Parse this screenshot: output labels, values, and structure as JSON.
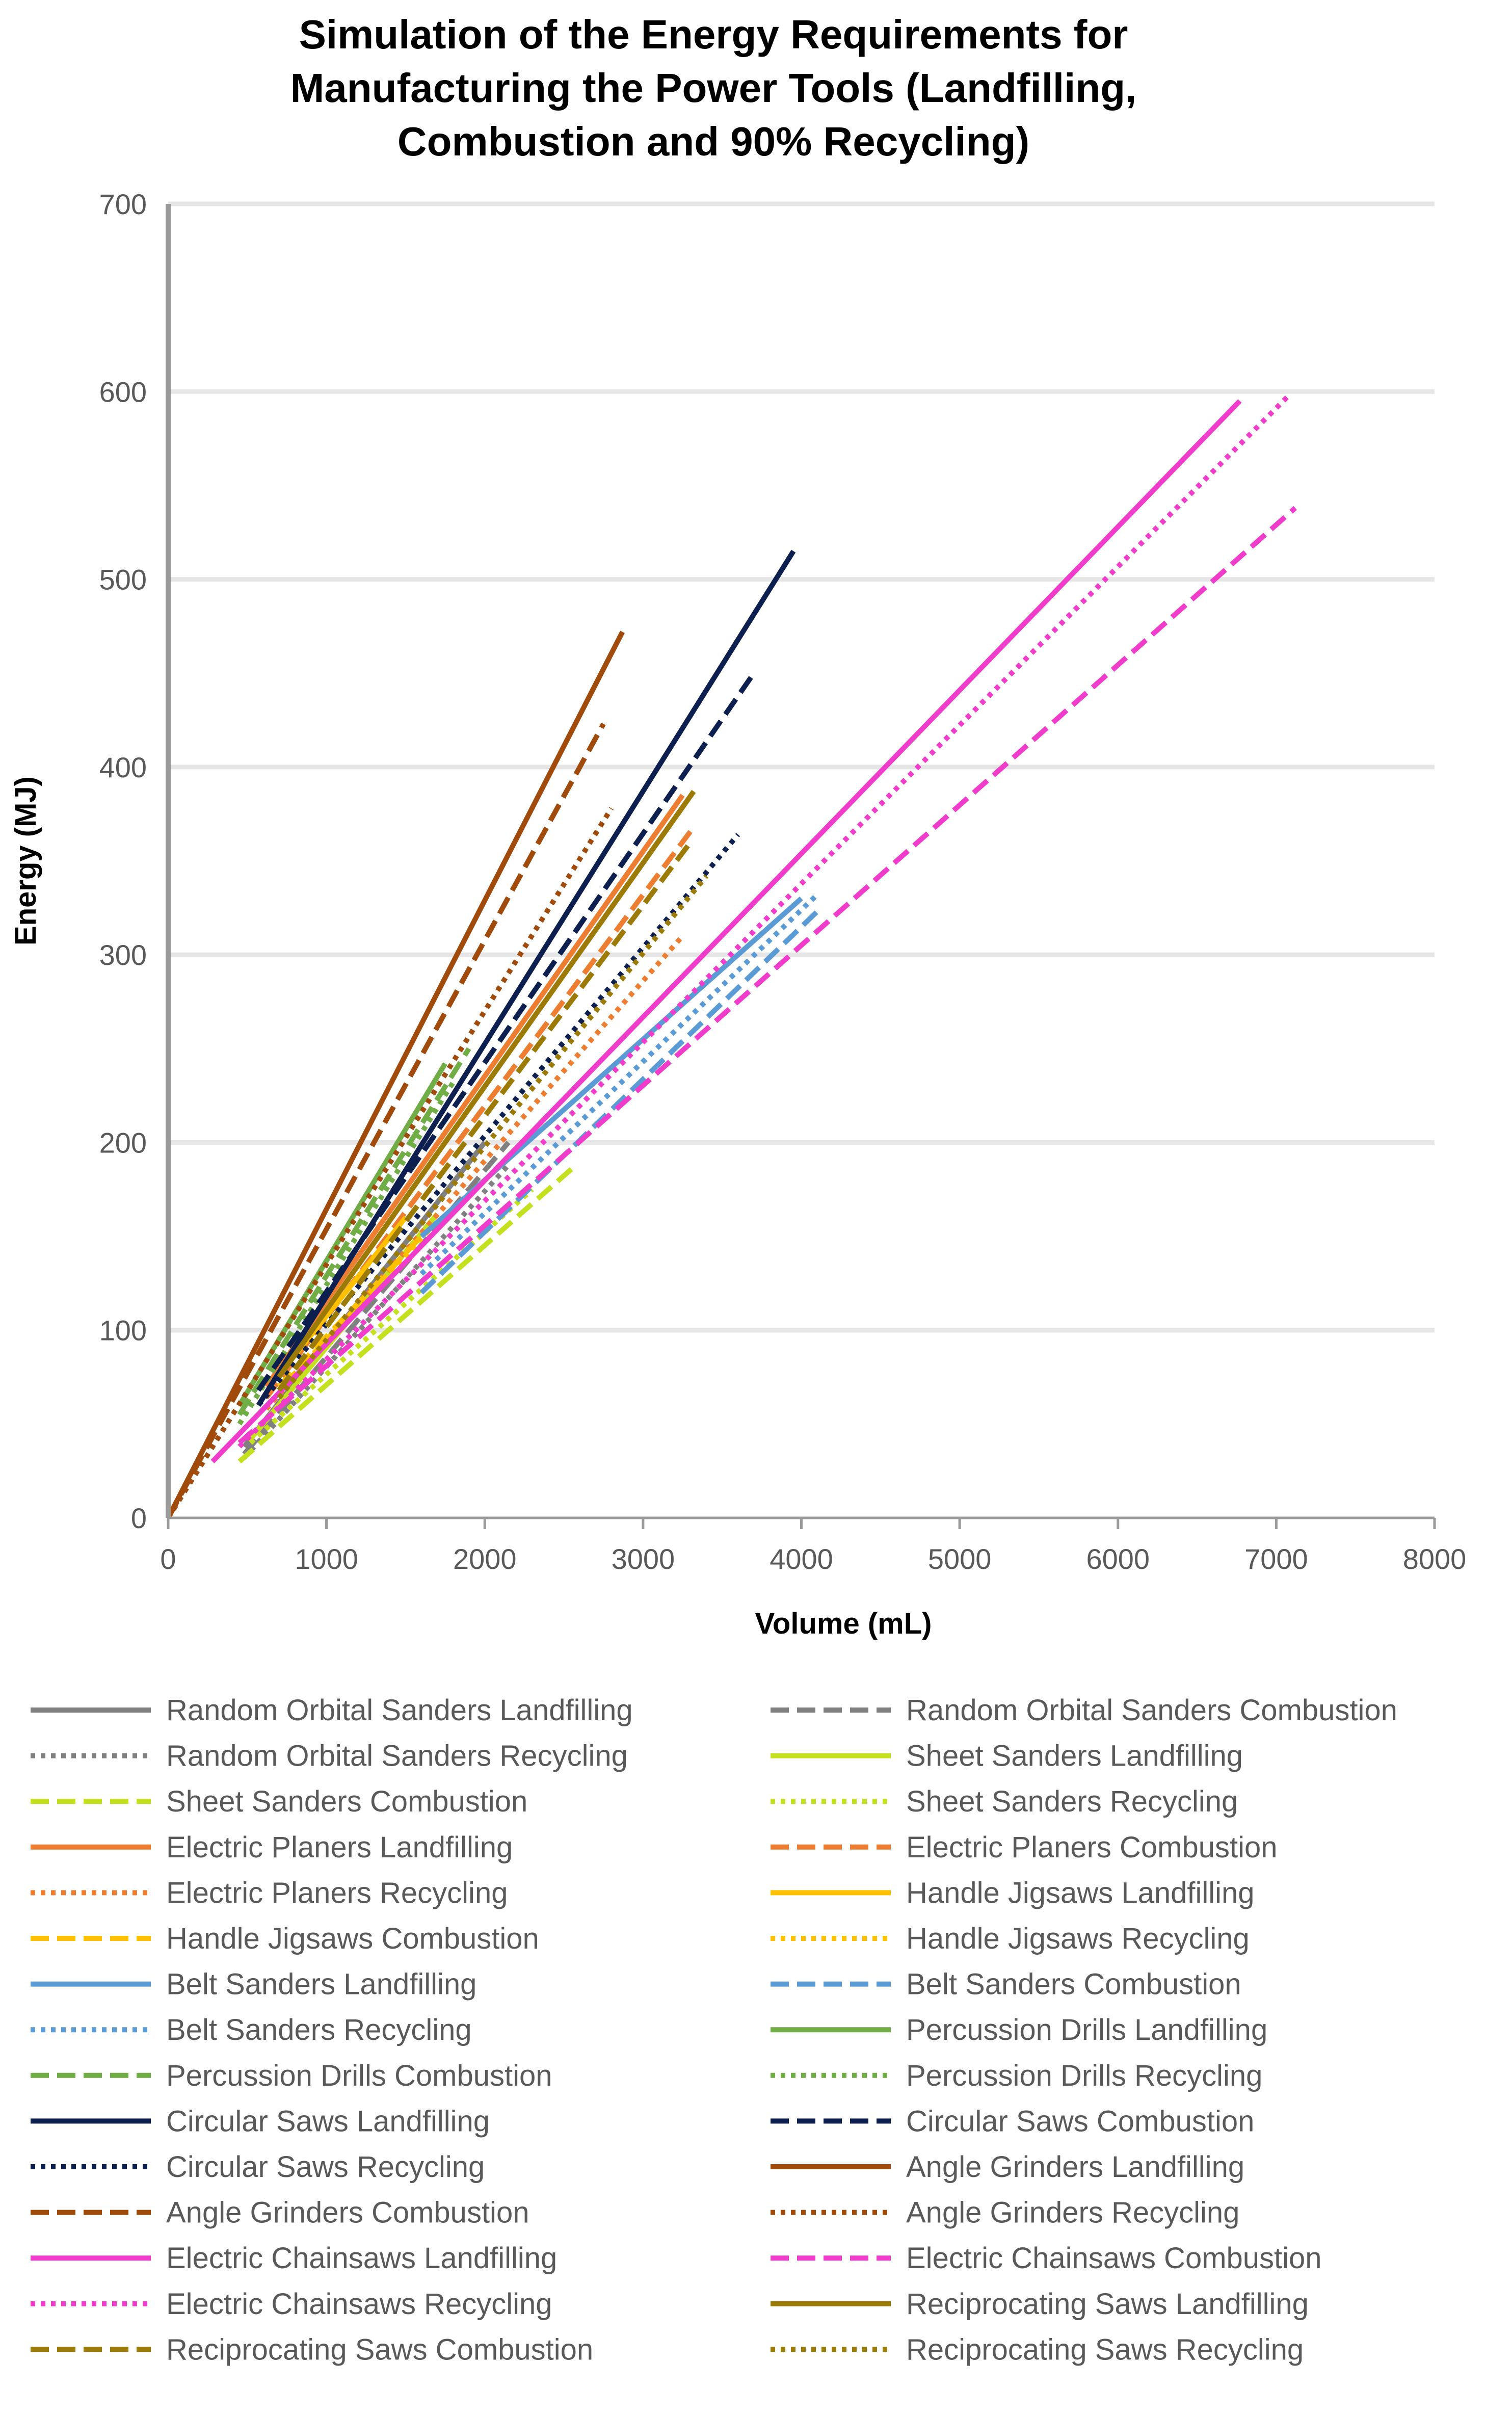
{
  "chart_data": {
    "type": "line",
    "title_lines": [
      "Simulation of the Energy Requirements for",
      "Manufacturing the Power Tools (Landfilling,",
      "Combustion and 90% Recycling)"
    ],
    "xlabel": "Volume (mL)",
    "ylabel": "Energy (MJ)",
    "xlim": [
      0,
      8000
    ],
    "ylim": [
      0,
      700
    ],
    "x_ticks": [
      0,
      1000,
      2000,
      3000,
      4000,
      5000,
      6000,
      7000,
      8000
    ],
    "y_ticks": [
      0,
      100,
      200,
      300,
      400,
      500,
      600,
      700
    ],
    "grid": "horizontal",
    "legend_position": "bottom",
    "series": [
      {
        "name": "Random Orbital Sanders Landfilling",
        "color": "#808080",
        "dash": "solid",
        "points": [
          [
            480,
            38
          ],
          [
            2000,
            200
          ]
        ]
      },
      {
        "name": "Random Orbital Sanders Combustion",
        "color": "#808080",
        "dash": "dash",
        "points": [
          [
            480,
            34
          ],
          [
            2150,
            200
          ]
        ]
      },
      {
        "name": "Random Orbital Sanders Recycling",
        "color": "#808080",
        "dash": "dot",
        "points": [
          [
            480,
            32
          ],
          [
            2150,
            188
          ]
        ]
      },
      {
        "name": "Sheet Sanders Landfilling",
        "color": "#C5E01E",
        "dash": "solid",
        "points": [
          [
            520,
            42
          ],
          [
            1700,
            162
          ]
        ]
      },
      {
        "name": "Sheet Sanders Combustion",
        "color": "#C5E01E",
        "dash": "dash",
        "points": [
          [
            450,
            30
          ],
          [
            2550,
            186
          ]
        ]
      },
      {
        "name": "Sheet Sanders Recycling",
        "color": "#C5E01E",
        "dash": "dot",
        "points": [
          [
            520,
            40
          ],
          [
            2300,
            175
          ]
        ]
      },
      {
        "name": "Electric Planers Landfilling",
        "color": "#ED7D31",
        "dash": "solid",
        "points": [
          [
            620,
            70
          ],
          [
            3250,
            385
          ]
        ]
      },
      {
        "name": "Electric Planers Combustion",
        "color": "#ED7D31",
        "dash": "dash",
        "points": [
          [
            620,
            64
          ],
          [
            3320,
            368
          ]
        ]
      },
      {
        "name": "Electric Planers Recycling",
        "color": "#ED7D31",
        "dash": "dot",
        "points": [
          [
            620,
            58
          ],
          [
            3250,
            310
          ]
        ]
      },
      {
        "name": "Handle Jigsaws Landfilling",
        "color": "#FFC000",
        "dash": "solid",
        "points": [
          [
            700,
            76
          ],
          [
            1500,
            160
          ]
        ]
      },
      {
        "name": "Handle Jigsaws Combustion",
        "color": "#FFC000",
        "dash": "dash",
        "points": [
          [
            700,
            70
          ],
          [
            1600,
            150
          ]
        ]
      },
      {
        "name": "Handle Jigsaws Recycling",
        "color": "#FFC000",
        "dash": "dot",
        "points": [
          [
            700,
            68
          ],
          [
            1700,
            158
          ]
        ]
      },
      {
        "name": "Belt Sanders Landfilling",
        "color": "#5B9BD5",
        "dash": "solid",
        "points": [
          [
            1600,
            150
          ],
          [
            4000,
            330
          ]
        ]
      },
      {
        "name": "Belt Sanders Combustion",
        "color": "#5B9BD5",
        "dash": "dash",
        "points": [
          [
            1600,
            120
          ],
          [
            4100,
            323
          ]
        ]
      },
      {
        "name": "Belt Sanders Recycling",
        "color": "#5B9BD5",
        "dash": "dot",
        "points": [
          [
            1600,
            130
          ],
          [
            4100,
            332
          ]
        ]
      },
      {
        "name": "Percussion Drills Landfilling",
        "color": "#70AD47",
        "dash": "solid",
        "points": [
          [
            450,
            60
          ],
          [
            1750,
            242
          ]
        ]
      },
      {
        "name": "Percussion Drills Combustion",
        "color": "#70AD47",
        "dash": "dash",
        "points": [
          [
            450,
            55
          ],
          [
            1900,
            250
          ]
        ]
      },
      {
        "name": "Percussion Drills Recycling",
        "color": "#70AD47",
        "dash": "dot",
        "points": [
          [
            450,
            50
          ],
          [
            1800,
            232
          ]
        ]
      },
      {
        "name": "Circular Saws Landfilling",
        "color": "#0D1F4F",
        "dash": "solid",
        "points": [
          [
            570,
            60
          ],
          [
            3950,
            515
          ]
        ]
      },
      {
        "name": "Circular Saws Combustion",
        "color": "#0D1F4F",
        "dash": "dash",
        "points": [
          [
            570,
            68
          ],
          [
            3700,
            450
          ]
        ]
      },
      {
        "name": "Circular Saws Recycling",
        "color": "#0D1F4F",
        "dash": "dot",
        "points": [
          [
            570,
            60
          ],
          [
            3600,
            364
          ]
        ]
      },
      {
        "name": "Angle Grinders Landfilling",
        "color": "#A04A0B",
        "dash": "solid",
        "points": [
          [
            0,
            0
          ],
          [
            2870,
            472
          ]
        ]
      },
      {
        "name": "Angle Grinders Combustion",
        "color": "#A04A0B",
        "dash": "dash",
        "points": [
          [
            0,
            0
          ],
          [
            2750,
            423
          ]
        ]
      },
      {
        "name": "Angle Grinders Recycling",
        "color": "#A04A0B",
        "dash": "dot",
        "points": [
          [
            0,
            0
          ],
          [
            2800,
            378
          ]
        ]
      },
      {
        "name": "Electric Chainsaws Landfilling",
        "color": "#F03CCB",
        "dash": "solid",
        "points": [
          [
            280,
            30
          ],
          [
            6770,
            595
          ]
        ]
      },
      {
        "name": "Electric Chainsaws Combustion",
        "color": "#F03CCB",
        "dash": "dash",
        "points": [
          [
            450,
            40
          ],
          [
            7120,
            538
          ]
        ]
      },
      {
        "name": "Electric Chainsaws Recycling",
        "color": "#F03CCB",
        "dash": "dot",
        "points": [
          [
            450,
            38
          ],
          [
            7080,
            598
          ]
        ]
      },
      {
        "name": "Reciprocating Saws Landfilling",
        "color": "#9C7A06",
        "dash": "solid",
        "points": [
          [
            700,
            75
          ],
          [
            3320,
            387
          ]
        ]
      },
      {
        "name": "Reciprocating Saws Combustion",
        "color": "#9C7A06",
        "dash": "dash",
        "points": [
          [
            700,
            68
          ],
          [
            3300,
            360
          ]
        ]
      },
      {
        "name": "Reciprocating Saws Recycling",
        "color": "#9C7A06",
        "dash": "dot",
        "points": [
          [
            700,
            64
          ],
          [
            3400,
            342
          ]
        ]
      }
    ]
  }
}
